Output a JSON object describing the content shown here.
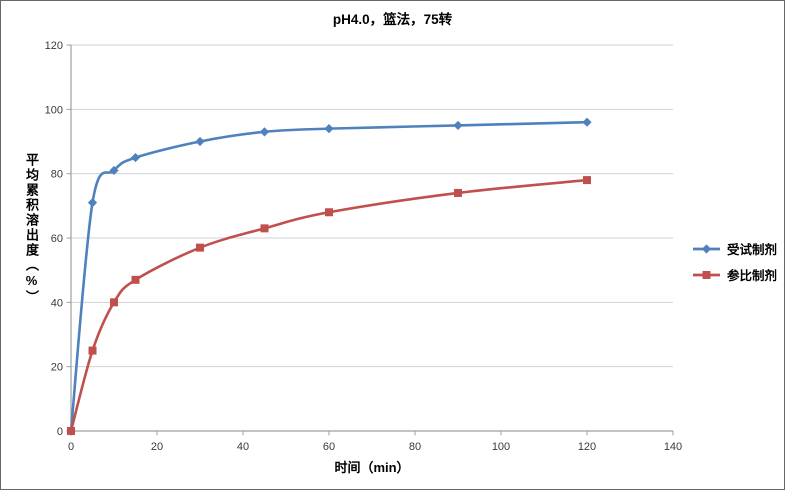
{
  "chart_data": {
    "type": "line",
    "title": "pH4.0，篮法，75转",
    "xlabel": "时间（min）",
    "ylabel": "平均累积溶出度（%）",
    "x": [
      0,
      5,
      10,
      15,
      30,
      45,
      60,
      90,
      120
    ],
    "series": [
      {
        "name": "受试制剂",
        "color": "#4F81BD",
        "marker": "diamond",
        "values": [
          0,
          71,
          81,
          85,
          90,
          93,
          94,
          95,
          96
        ]
      },
      {
        "name": "参比制剂",
        "color": "#C0504D",
        "marker": "square",
        "values": [
          0,
          25,
          40,
          47,
          57,
          63,
          68,
          74,
          78
        ]
      }
    ],
    "xlim": [
      0,
      140
    ],
    "ylim": [
      0,
      120
    ],
    "xticks": [
      0,
      20,
      40,
      60,
      80,
      100,
      120,
      140
    ],
    "yticks": [
      0,
      20,
      40,
      60,
      80,
      100,
      120
    ],
    "grid": true,
    "line_style": "smoothed",
    "legend_position": "right",
    "colors": {
      "gridline": "#d2d2d2",
      "axis": "#a0a0a0",
      "tick_label": "#3a3a3a",
      "text": "#000000",
      "background": "#ffffff",
      "border": "#686868"
    }
  }
}
